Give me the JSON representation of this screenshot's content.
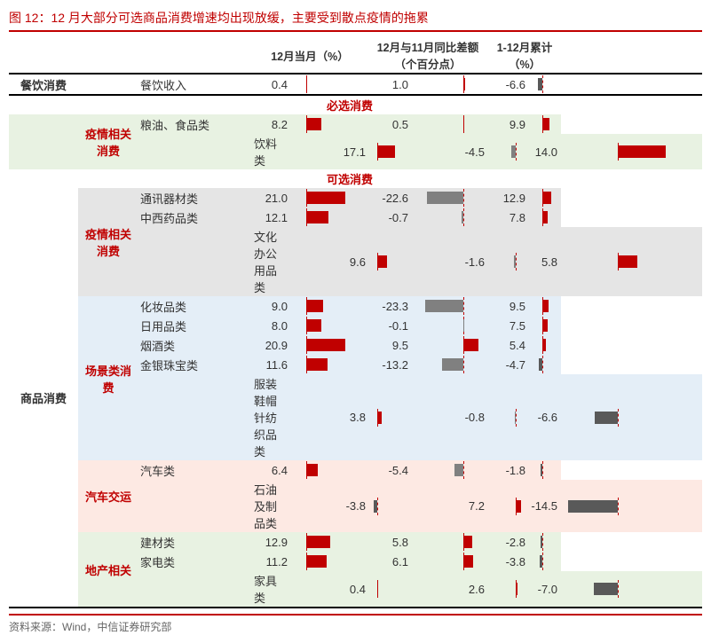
{
  "title": "图 12：12 月大部分可选商品消费增速均出现放缓，主要受到散点疫情的拖累",
  "source": "资料来源：Wind，中信证券研究部",
  "headers": {
    "c1": "12月当月（%）",
    "c2": "12月与11月同比差额（个百分点）",
    "c3": "1-12月累计（%）"
  },
  "section_labels": {
    "essential": "必选消费",
    "optional": "可选消费",
    "main_left_top": "餐饮消费",
    "main_left_mid": "商品消费",
    "g1": "疫情相关消费",
    "g2": "疫情相关消费",
    "g3": "场景类消费",
    "g4": "汽车交运",
    "g5": "地产相关"
  },
  "colors": {
    "red": "#c00000",
    "gray": "#808080",
    "dark": "#595959"
  },
  "axes": {
    "c1": {
      "min": -10,
      "max": 30,
      "zero_frac": 0.2
    },
    "c2": {
      "min": -30,
      "max": 15,
      "zero_frac": 0.68
    },
    "c3": {
      "min": -20,
      "max": 20,
      "zero_frac": 0.4
    }
  },
  "rows": [
    {
      "item": "餐饮收入",
      "v1": 0.4,
      "v2": 1.0,
      "v3": -6.6,
      "bg": "",
      "top": true,
      "bot": true,
      "leftA": "餐饮消费",
      "rowsA": 1
    },
    {
      "section": "essential"
    },
    {
      "item": "粮油、食品类",
      "v1": 8.2,
      "v2": 0.5,
      "v3": 9.9,
      "bg": "bg-green",
      "leftB": "疫情相关消费",
      "leftBcls": "group-red",
      "rowsB": 2
    },
    {
      "item": "饮料类",
      "v1": 17.1,
      "v2": -4.5,
      "v3": 14.0,
      "bg": "bg-green"
    },
    {
      "section": "optional"
    },
    {
      "item": "通讯器材类",
      "v1": 21.0,
      "v2": -22.6,
      "v3": 12.9,
      "bg": "bg-gray",
      "leftA": "商品消费",
      "rowsA": 13,
      "leftB": "疫情相关消费",
      "leftBcls": "group-red",
      "rowsB": 3
    },
    {
      "item": "中西药品类",
      "v1": 12.1,
      "v2": -0.7,
      "v3": 7.8,
      "bg": "bg-gray"
    },
    {
      "item": "文化办公用品类",
      "v1": 9.6,
      "v2": -1.6,
      "v3": 5.8,
      "bg": "bg-gray"
    },
    {
      "item": "化妆品类",
      "v1": 9.0,
      "v2": -23.3,
      "v3": 9.5,
      "bg": "bg-blue",
      "leftB": "场景类消费",
      "leftBcls": "group-red",
      "rowsB": 5
    },
    {
      "item": "日用品类",
      "v1": 8.0,
      "v2": -0.1,
      "v3": 7.5,
      "bg": "bg-blue"
    },
    {
      "item": "烟酒类",
      "v1": 20.9,
      "v2": 9.5,
      "v3": 5.4,
      "bg": "bg-blue"
    },
    {
      "item": "金银珠宝类",
      "v1": 11.6,
      "v2": -13.2,
      "v3": -4.7,
      "bg": "bg-blue"
    },
    {
      "item": "服装鞋帽针纺织品类",
      "v1": 3.8,
      "v2": -0.8,
      "v3": -6.6,
      "bg": "bg-blue"
    },
    {
      "item": "汽车类",
      "v1": 6.4,
      "v2": -5.4,
      "v3": -1.8,
      "bg": "bg-pink",
      "leftB": "汽车交运",
      "leftBcls": "group-red",
      "rowsB": 2
    },
    {
      "item": "石油及制品类",
      "v1": -3.8,
      "v2": 7.2,
      "v3": -14.5,
      "bg": "bg-pink"
    },
    {
      "item": "建材类",
      "v1": 12.9,
      "v2": 5.8,
      "v3": -2.8,
      "bg": "bg-green",
      "leftB": "地产相关",
      "leftBcls": "group-red",
      "rowsB": 3
    },
    {
      "item": "家电类",
      "v1": 11.2,
      "v2": 6.1,
      "v3": -3.8,
      "bg": "bg-green"
    },
    {
      "item": "家具类",
      "v1": 0.4,
      "v2": 2.6,
      "v3": -7.0,
      "bg": "bg-green",
      "bot": true
    }
  ]
}
